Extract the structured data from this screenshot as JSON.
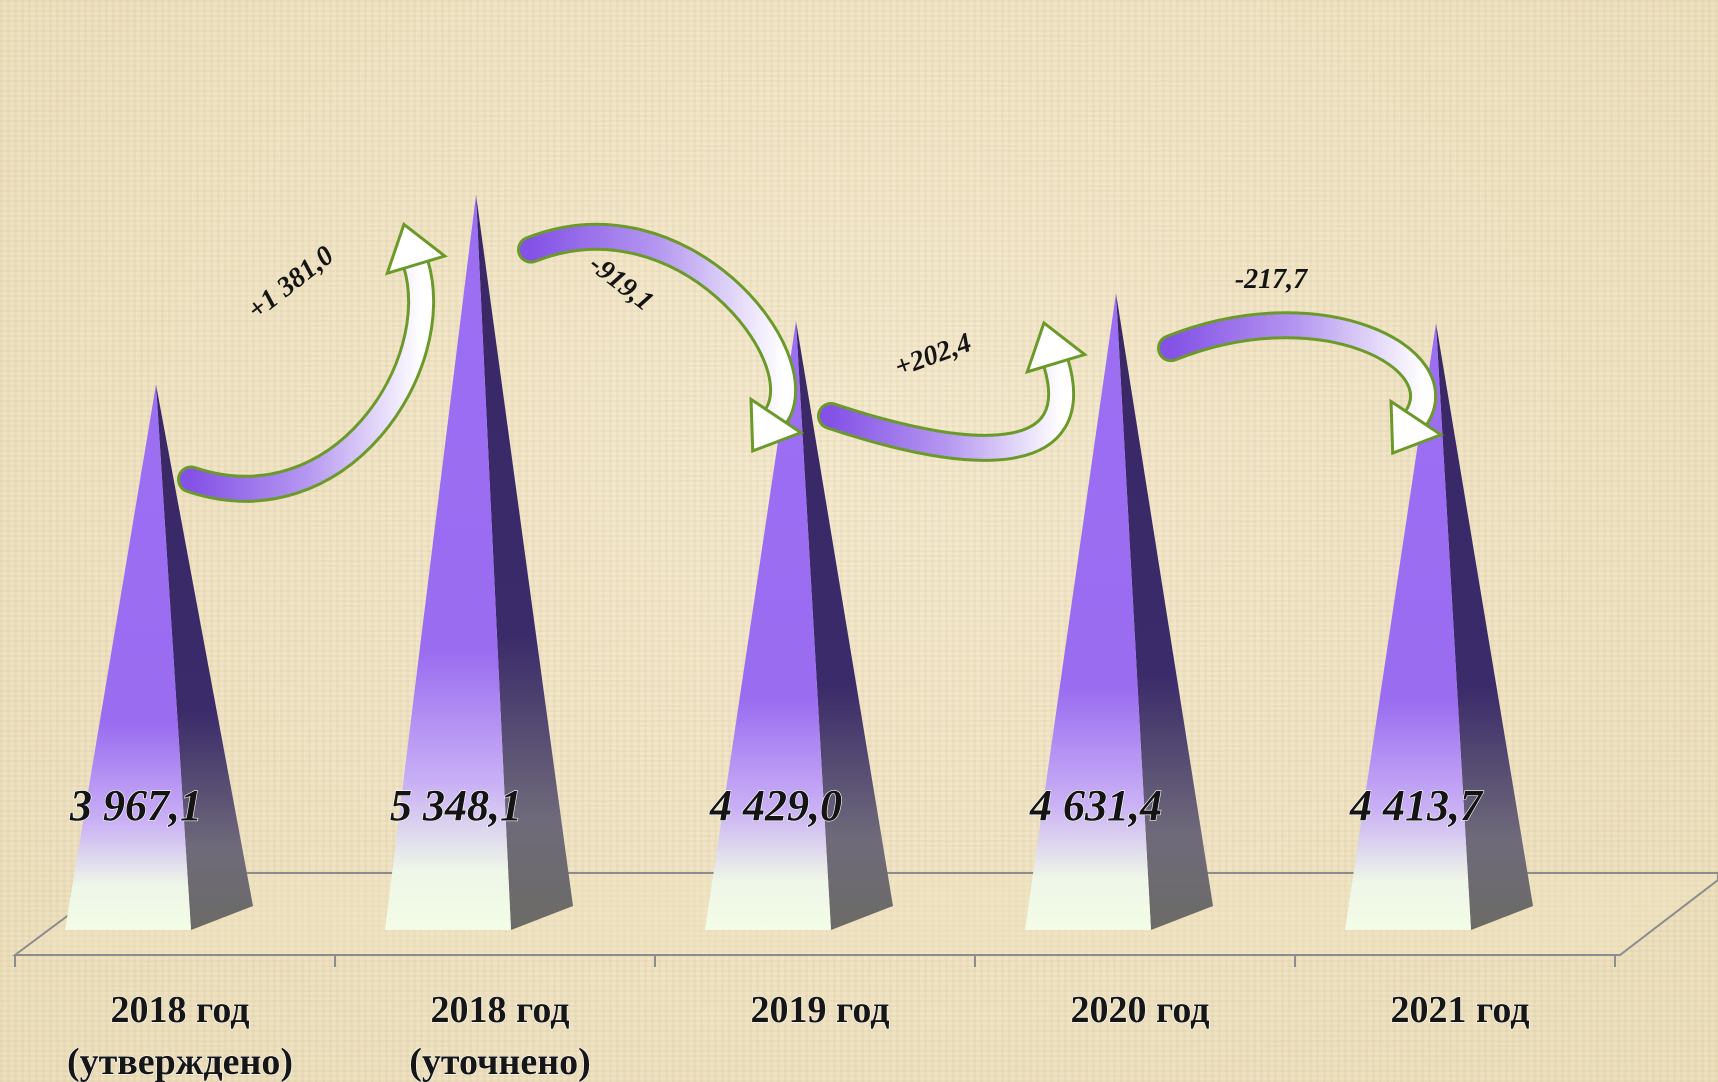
{
  "chart_data": {
    "type": "bar",
    "categories": [
      [
        "2018 год",
        "(утверждено)"
      ],
      [
        "2018 год",
        "(уточнено)"
      ],
      [
        "2019 год"
      ],
      [
        "2020 год"
      ],
      [
        "2021 год"
      ]
    ],
    "values": [
      3967.1,
      5348.1,
      4429.0,
      4631.4,
      4413.7
    ],
    "value_labels": [
      "3 967,1",
      "5 348,1",
      "4 429,0",
      "4 631,4",
      "4 413,7"
    ],
    "changes": [
      {
        "from": 0,
        "to": 1,
        "label": "+1 381,0",
        "direction": "up"
      },
      {
        "from": 1,
        "to": 2,
        "label": "-919,1",
        "direction": "down"
      },
      {
        "from": 2,
        "to": 3,
        "label": "+202,4",
        "direction": "up"
      },
      {
        "from": 3,
        "to": 4,
        "label": "-217,7",
        "direction": "down"
      }
    ],
    "colors": {
      "bar_top": "#9b6cf2",
      "bar_bottom": "#f0fae6",
      "bar_side": "#3b2a6b",
      "arrow_fill": "#8a5be8",
      "arrow_stroke": "#6b9a2a",
      "floor_line": "#8c8c8c"
    }
  }
}
